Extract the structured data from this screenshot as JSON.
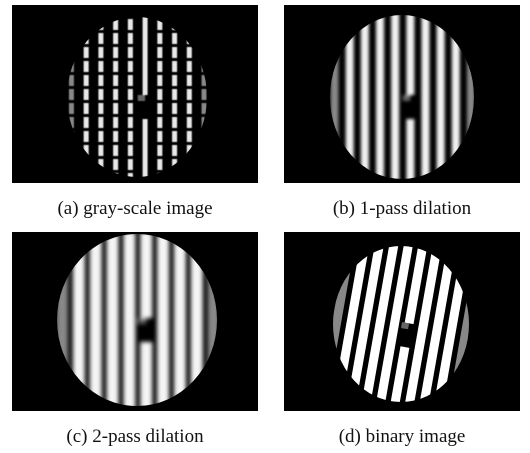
{
  "panels": [
    {
      "caption": "(a) gray-scale image"
    },
    {
      "caption": "(b) 1-pass dilation"
    },
    {
      "caption": "(c) 2-pass dilation"
    },
    {
      "caption": "(d) binary image"
    }
  ]
}
